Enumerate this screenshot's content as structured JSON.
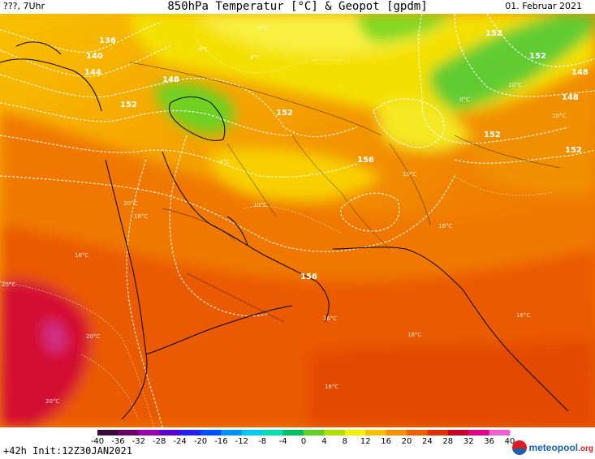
{
  "header": {
    "left": "???, 7Uhr",
    "title": "850hPa Temperatur [°C] & Geopot [gpdm]",
    "date": "01. Februar 2021"
  },
  "footer": {
    "run": "+42h Init:12Z30JAN2021",
    "logo": "meteopool",
    "logo_tld": ".org"
  },
  "legend": {
    "ticks": [
      "-40",
      "-36",
      "-32",
      "-28",
      "-24",
      "-20",
      "-16",
      "-12",
      "-8",
      "-4",
      "0",
      "4",
      "8",
      "12",
      "16",
      "20",
      "24",
      "28",
      "32",
      "36",
      "40"
    ],
    "colors": [
      "#3a0a3a",
      "#6a006a",
      "#9a00b0",
      "#5a00d0",
      "#2020f0",
      "#0050ff",
      "#0090ff",
      "#00c8f0",
      "#00e0b0",
      "#00c060",
      "#60d020",
      "#b0e000",
      "#f0f000",
      "#f8c000",
      "#f89000",
      "#f06000",
      "#e03000",
      "#c80028",
      "#e0008a",
      "#f060d0",
      "#f8a8f0"
    ]
  },
  "map": {
    "contour_labels": [
      "136",
      "140",
      "144",
      "148",
      "152",
      "152",
      "156",
      "156",
      "152",
      "148",
      "152",
      "152",
      "148",
      "152"
    ],
    "temp_labels": [
      "0°C",
      "4°C",
      "8°C",
      "4°C",
      "10°C",
      "10°C",
      "20°C",
      "16°C",
      "16°C",
      "16°C",
      "20°C",
      "16°C",
      "16°C",
      "16°C",
      "20°C",
      "20°C",
      "16°C",
      "10°C",
      "0°C",
      "10°C"
    ]
  }
}
